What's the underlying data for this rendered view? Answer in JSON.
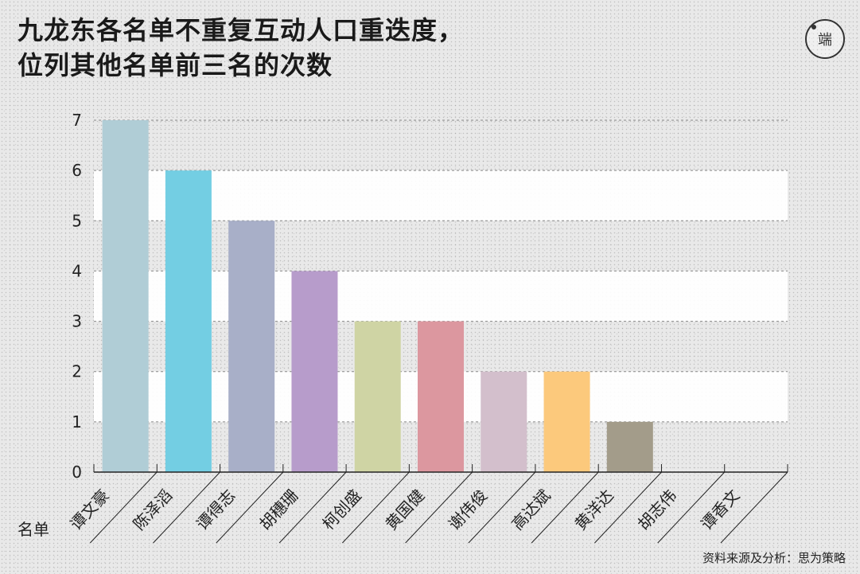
{
  "header": {
    "title_line1": "九龙东各名单不重复互动人口重迭度，",
    "title_line2": "位列其他名单前三名的次数"
  },
  "logo": {
    "text": "端",
    "icon": "initium-logo"
  },
  "footer": {
    "source": "资料来源及分析：思为策略"
  },
  "chart_data": {
    "type": "bar",
    "title": "九龙东各名单不重复互动人口重迭度，位列其他名单前三名的次数",
    "xlabel": "名单",
    "ylabel": "",
    "ylim": [
      0,
      7
    ],
    "yticks": [
      0,
      1,
      2,
      3,
      4,
      5,
      6,
      7
    ],
    "grid": true,
    "categories": [
      "谭文豪",
      "陈泽滔",
      "谭得志",
      "胡穗珊",
      "柯创盛",
      "黄国健",
      "谢伟俊",
      "高达斌",
      "黄洋达",
      "胡志伟",
      "谭香文"
    ],
    "values": [
      7,
      6,
      5,
      4,
      3,
      3,
      2,
      2,
      1,
      0,
      0
    ],
    "colors": [
      "#b0cdd6",
      "#73cee3",
      "#a8afc8",
      "#b79ccb",
      "#cfd4a4",
      "#dc979f",
      "#d3bfcc",
      "#fcc97c",
      "#a39c8a",
      "#a39c8a",
      "#a39c8a"
    ]
  }
}
